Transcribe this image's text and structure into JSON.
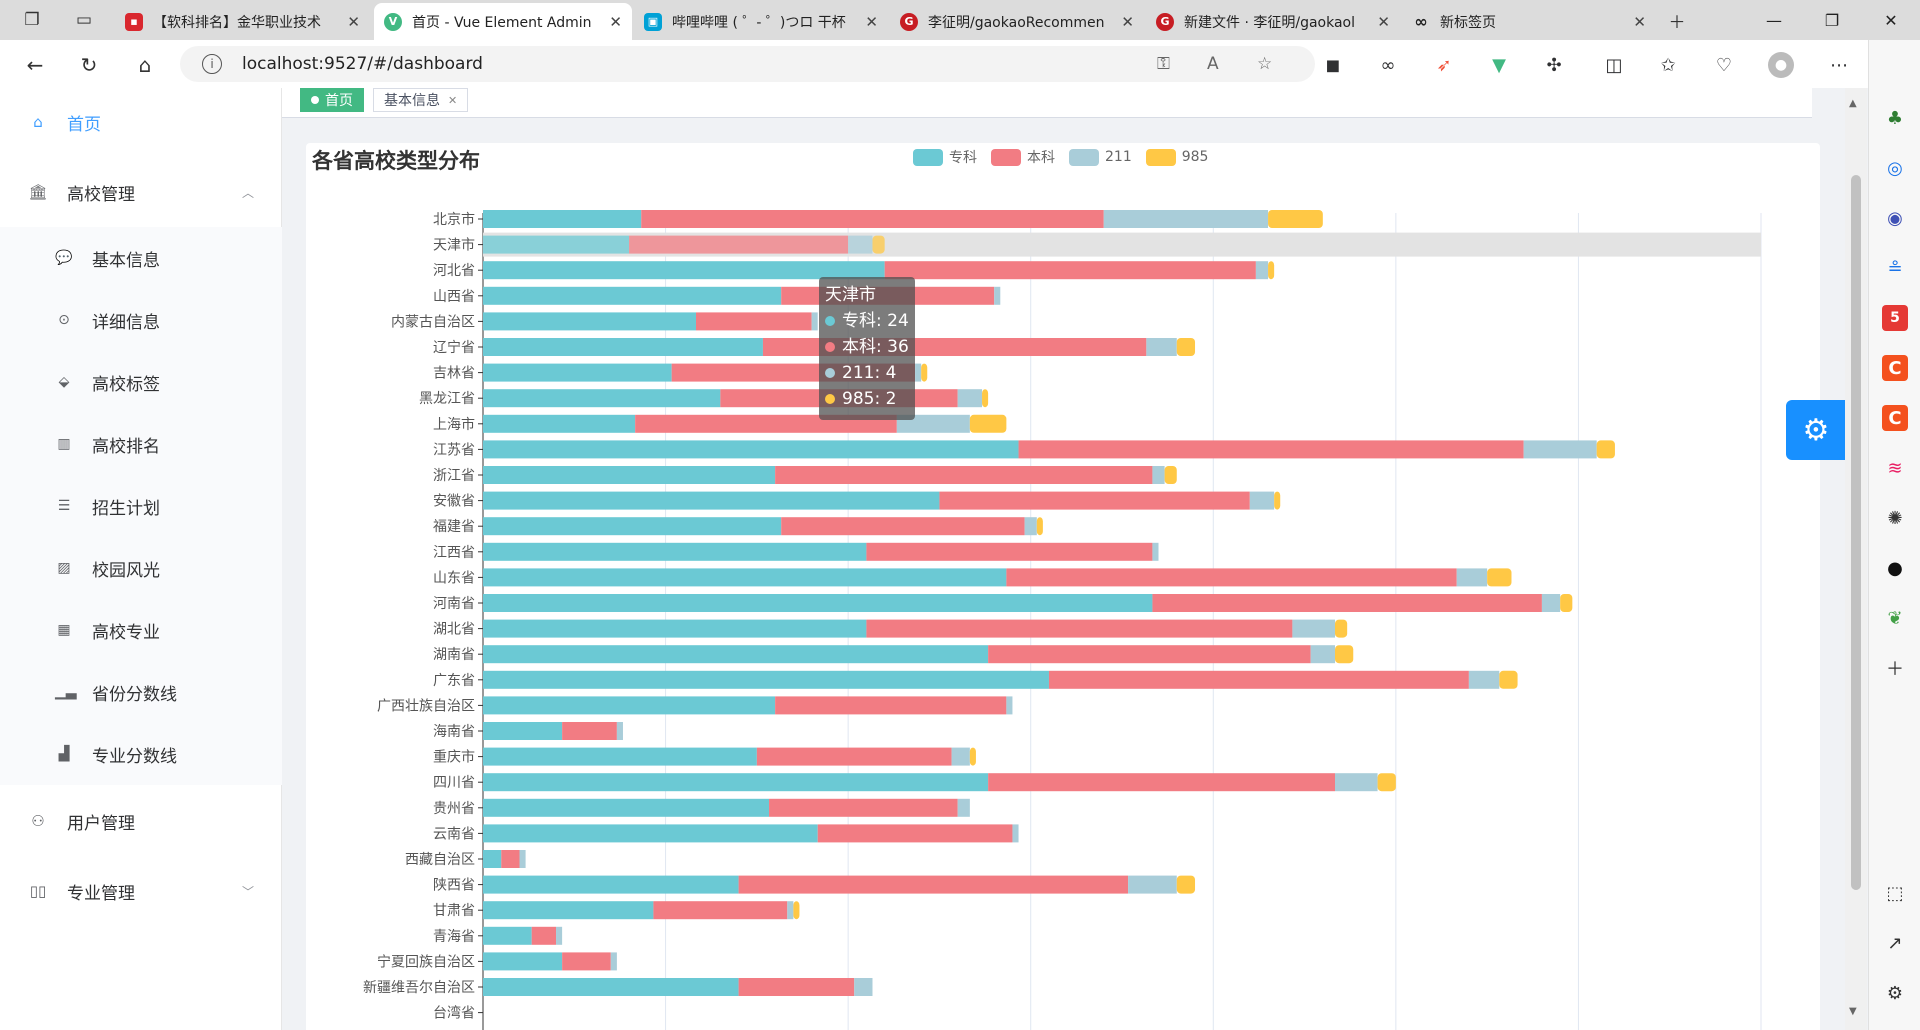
{
  "browser": {
    "tabs": [
      {
        "title": "【软科排名】金华职业技术",
        "favicon": "red-square",
        "active": false
      },
      {
        "title": "首页 - Vue Element Admin",
        "favicon": "vue-logo",
        "active": true
      },
      {
        "title": "哔哩哔哩 ( ゜- ゜)つロ 干杯",
        "favicon": "bilibili-logo",
        "active": false
      },
      {
        "title": "李征明/gaokaoRecommen",
        "favicon": "gitee-logo",
        "active": false
      },
      {
        "title": "新建文件 · 李征明/gaokaol",
        "favicon": "gitee-logo",
        "active": false
      },
      {
        "title": "新标签页",
        "favicon": "infinity-icon",
        "active": false
      }
    ],
    "url": "localhost:9527/#/dashboard"
  },
  "sidebar": {
    "items": [
      {
        "label": "首页",
        "icon": "home-icon",
        "active": true
      },
      {
        "label": "高校管理",
        "icon": "building-icon",
        "expanded": true
      },
      {
        "label": "基本信息",
        "icon": "chat-icon",
        "sub": true
      },
      {
        "label": "详细信息",
        "icon": "more-icon",
        "sub": true
      },
      {
        "label": "高校标签",
        "icon": "tag-icon",
        "sub": true
      },
      {
        "label": "高校排名",
        "icon": "bar-chart-icon",
        "sub": true
      },
      {
        "label": "招生计划",
        "icon": "form-icon",
        "sub": true
      },
      {
        "label": "校园风光",
        "icon": "image-icon",
        "sub": true
      },
      {
        "label": "高校专业",
        "icon": "table-icon",
        "sub": true
      },
      {
        "label": "省份分数线",
        "icon": "chart-icon",
        "sub": true
      },
      {
        "label": "专业分数线",
        "icon": "stats-icon",
        "sub": true
      },
      {
        "label": "用户管理",
        "icon": "user-icon",
        "expanded": false
      },
      {
        "label": "专业管理",
        "icon": "book-icon",
        "expanded": false
      }
    ]
  },
  "tagsview": {
    "tags": [
      {
        "label": "首页",
        "active": true
      },
      {
        "label": "基本信息",
        "active": false
      }
    ]
  },
  "tooltip": {
    "title": "天津市",
    "rows": [
      "专科: 24",
      "本科: 36",
      "211: 4",
      "985: 2"
    ]
  },
  "colors": {
    "zhuanke": "#6bc9d4",
    "benke": "#f27c83",
    "c211": "#a9cdd9",
    "c985": "#ffc845"
  },
  "chart_data": {
    "type": "bar",
    "orientation": "horizontal",
    "stacked": true,
    "title": "各省高校类型分布",
    "legend_position": "top-center",
    "categories": [
      "北京市",
      "天津市",
      "河北省",
      "山西省",
      "内蒙古自治区",
      "辽宁省",
      "吉林省",
      "黑龙江省",
      "上海市",
      "江苏省",
      "浙江省",
      "安徽省",
      "福建省",
      "江西省",
      "山东省",
      "河南省",
      "湖北省",
      "湖南省",
      "广东省",
      "广西壮族自治区",
      "海南省",
      "重庆市",
      "四川省",
      "贵州省",
      "云南省",
      "西藏自治区",
      "陕西省",
      "甘肃省",
      "青海省",
      "宁夏回族自治区",
      "新疆维吾尔自治区",
      "台湾省"
    ],
    "highlighted_category": "天津市",
    "xlim": [
      0,
      210
    ],
    "grid": true,
    "series": [
      {
        "name": "专科",
        "values": [
          26,
          24,
          66,
          49,
          35,
          46,
          31,
          39,
          25,
          88,
          48,
          75,
          49,
          63,
          86,
          110,
          63,
          83,
          93,
          48,
          13,
          45,
          83,
          47,
          55,
          3,
          42,
          28,
          8,
          13,
          42,
          0
        ]
      },
      {
        "name": "本科",
        "values": [
          76,
          36,
          61,
          35,
          19,
          63,
          40,
          39,
          43,
          83,
          62,
          51,
          40,
          47,
          74,
          64,
          70,
          53,
          69,
          38,
          9,
          32,
          57,
          31,
          32,
          3,
          64,
          22,
          4,
          8,
          19,
          0
        ]
      },
      {
        "name": "211",
        "values": [
          27,
          4,
          2,
          1,
          1,
          5,
          1,
          4,
          12,
          12,
          2,
          4,
          2,
          1,
          5,
          3,
          7,
          4,
          5,
          1,
          1,
          3,
          7,
          2,
          1,
          1,
          8,
          1,
          1,
          1,
          3,
          0
        ]
      },
      {
        "name": "985",
        "values": [
          9,
          2,
          1,
          0,
          0,
          3,
          1,
          1,
          6,
          3,
          2,
          1,
          1,
          0,
          4,
          2,
          2,
          3,
          3,
          0,
          0,
          1,
          3,
          0,
          0,
          0,
          3,
          1,
          0,
          0,
          0,
          0
        ]
      }
    ]
  }
}
